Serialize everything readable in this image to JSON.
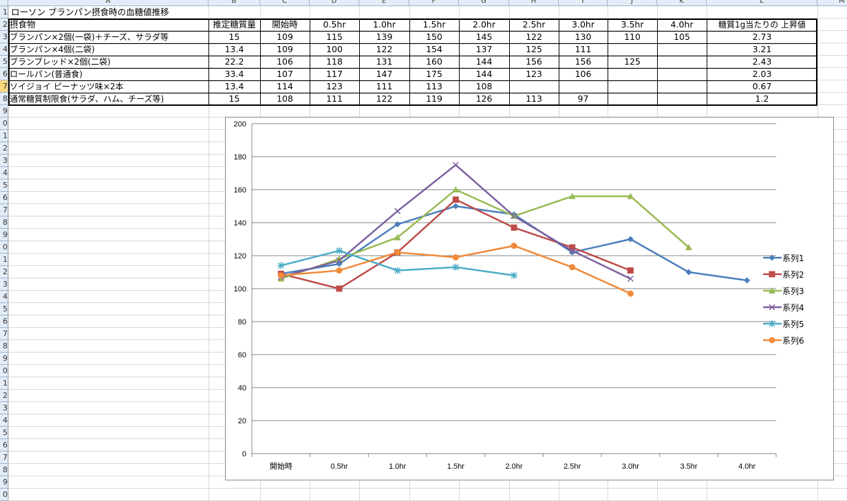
{
  "sheet": {
    "columns": [
      "A",
      "B",
      "C",
      "D",
      "E",
      "F",
      "G",
      "H",
      "I",
      "J",
      "K",
      "L",
      "M"
    ],
    "row_numbers": [
      "1",
      "2",
      "3",
      "4",
      "5",
      "6",
      "7",
      "8",
      "9",
      "0",
      "1",
      "2",
      "3",
      "4",
      "5",
      "6",
      "7",
      "8",
      "9",
      "0",
      "1",
      "2",
      "3",
      "4",
      "5",
      "6",
      "7",
      "8",
      "9",
      "0",
      "1",
      "2",
      "3",
      "4",
      "5",
      "6",
      "7",
      "8",
      "9",
      "0"
    ],
    "title": "ローソン ブランパン摂食時の血糖値推移",
    "headers": [
      "摂食物",
      "推定糖質量",
      "開始時",
      "0.5hr",
      "1.0hr",
      "1.5hr",
      "2.0hr",
      "2.5hr",
      "3.0hr",
      "3.5hr",
      "4.0hr",
      "糖質1g当たりの 上昇値"
    ],
    "rows": [
      [
        "ブランパン×2個(一袋)＋チーズ、サラダ等",
        "15",
        "109",
        "115",
        "139",
        "150",
        "145",
        "122",
        "130",
        "110",
        "105",
        "2.73"
      ],
      [
        "ブランパン×4個(二袋)",
        "13.4",
        "109",
        "100",
        "122",
        "154",
        "137",
        "125",
        "111",
        "",
        "",
        "3.21"
      ],
      [
        "ブランブレッド×2個(二袋)",
        "22.2",
        "106",
        "118",
        "131",
        "160",
        "144",
        "156",
        "156",
        "125",
        "",
        "2.43"
      ],
      [
        "ロールパン(普通食)",
        "33.4",
        "107",
        "117",
        "147",
        "175",
        "144",
        "123",
        "106",
        "",
        "",
        "2.03"
      ],
      [
        "ソイジョイ ピーナッツ味×2本",
        "13.4",
        "114",
        "123",
        "111",
        "113",
        "108",
        "",
        "",
        "",
        "",
        "0.67"
      ],
      [
        "通常糖質制限食(サラダ、ハム、チーズ等)",
        "15",
        "108",
        "111",
        "122",
        "119",
        "126",
        "113",
        "97",
        "",
        "",
        "1.2"
      ]
    ]
  },
  "chart_data": {
    "type": "line",
    "title": "",
    "xlabel": "",
    "ylabel": "",
    "categories": [
      "開始時",
      "0.5hr",
      "1.0hr",
      "1.5hr",
      "2.0hr",
      "2.5hr",
      "3.0hr",
      "3.5hr",
      "4.0hr"
    ],
    "ylim": [
      0,
      200
    ],
    "yticks": [
      "0",
      "20",
      "40",
      "60",
      "80",
      "100",
      "120",
      "140",
      "160",
      "180",
      "200"
    ],
    "grid": true,
    "legend": "right",
    "series": [
      {
        "name": "系列1",
        "color": "#4A7EBB",
        "marker": "diamond",
        "values": [
          109,
          115,
          139,
          150,
          145,
          122,
          130,
          110,
          105
        ]
      },
      {
        "name": "系列2",
        "color": "#BE4B48",
        "marker": "square",
        "values": [
          109,
          100,
          122,
          154,
          137,
          125,
          111,
          null,
          null
        ]
      },
      {
        "name": "系列3",
        "color": "#98B954",
        "marker": "triangle",
        "values": [
          106,
          118,
          131,
          160,
          144,
          156,
          156,
          125,
          null
        ]
      },
      {
        "name": "系列4",
        "color": "#7D60A0",
        "marker": "x",
        "values": [
          107,
          117,
          147,
          175,
          144,
          123,
          106,
          null,
          null
        ]
      },
      {
        "name": "系列5",
        "color": "#4BACC6",
        "marker": "star",
        "values": [
          114,
          123,
          111,
          113,
          108,
          null,
          null,
          null,
          null
        ]
      },
      {
        "name": "系列6",
        "color": "#F08A3A",
        "marker": "circle",
        "values": [
          108,
          111,
          122,
          119,
          126,
          113,
          97,
          null,
          null
        ]
      }
    ]
  }
}
